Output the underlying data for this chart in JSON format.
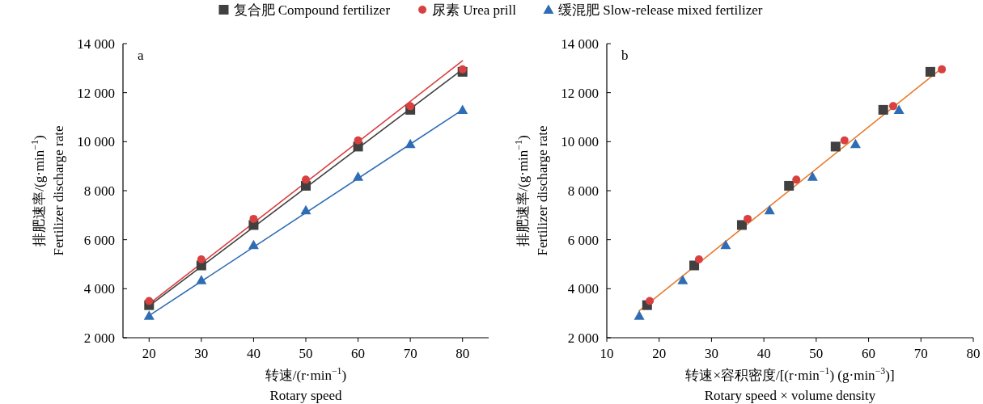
{
  "chart_data": [
    {
      "type": "scatter",
      "xlabel": "转速/(r·min$^{−1}$)\nRotary speed",
      "ylabel": "排肥速率/(g·min$^{−1}$)\nFertilizer discharge rate",
      "annotations": [
        "a"
      ],
      "legend": "top",
      "xlim": [
        15,
        85
      ],
      "xticks": [
        20,
        30,
        40,
        50,
        60,
        70,
        80
      ],
      "ylim": [
        2000,
        14000
      ],
      "yticks": [
        {
          "value": 2000,
          "label": "2 000"
        },
        {
          "value": 4000,
          "label": "4 000"
        },
        {
          "value": 6000,
          "label": "6 000"
        },
        {
          "value": 8000,
          "label": "8 000"
        },
        {
          "value": 10000,
          "label": "10 000"
        },
        {
          "value": 12000,
          "label": "12 000"
        },
        {
          "value": 14000,
          "label": "14 000"
        }
      ],
      "grid": false,
      "series": [
        {
          "name": "复合肥 Compound fertilizer",
          "color": "#404040",
          "marker": "square",
          "x": [
            20,
            30,
            40,
            50,
            60,
            70,
            80
          ],
          "values": [
            3330,
            4950,
            6600,
            8200,
            9800,
            11300,
            12850
          ]
        },
        {
          "name": "尿素 Urea prill",
          "color": "#d94040",
          "marker": "circle",
          "x": [
            20,
            30,
            40,
            50,
            60,
            70,
            80
          ],
          "values": [
            3500,
            5200,
            6850,
            8450,
            10050,
            11450,
            12950
          ]
        },
        {
          "name": "缓混肥 Slow-release mixed fertilizer",
          "color": "#2e6db4",
          "marker": "triangle",
          "x": [
            20,
            30,
            40,
            50,
            60,
            70,
            80
          ],
          "values": [
            2900,
            4350,
            5780,
            7200,
            8570,
            9900,
            11300
          ]
        },
        {
          "type": "line",
          "color": "#404040",
          "marker": "none",
          "line_style": "solid",
          "x": [
            20,
            80
          ],
          "values": [
            3300,
            12950
          ]
        },
        {
          "type": "line",
          "color": "#d94040",
          "marker": "none",
          "line_style": "solid",
          "x": [
            20,
            80
          ],
          "values": [
            3380,
            13300
          ]
        },
        {
          "type": "line",
          "color": "#2e6db4",
          "marker": "none",
          "line_style": "solid",
          "x": [
            20,
            80
          ],
          "values": [
            2900,
            11300
          ]
        }
      ]
    },
    {
      "type": "scatter",
      "xlabel": "转速×容积密度/[(r·min$^{−1}$) (g·min$^{−3}$)]\nRotary speed × volume density",
      "ylabel": "排肥速率/(g·min$^{−1}$)\nFertilizer discharge rate",
      "annotations": [
        "b"
      ],
      "xlim": [
        10,
        80
      ],
      "xticks": [
        10,
        20,
        30,
        40,
        50,
        60,
        70,
        80
      ],
      "ylim": [
        2000,
        14000
      ],
      "yticks": [
        {
          "value": 2000,
          "label": "2 000"
        },
        {
          "value": 4000,
          "label": "4 000"
        },
        {
          "value": 6000,
          "label": "6 000"
        },
        {
          "value": 8000,
          "label": "8 000"
        },
        {
          "value": 10000,
          "label": "10 000"
        },
        {
          "value": 12000,
          "label": "12 000"
        },
        {
          "value": 14000,
          "label": "14 000"
        }
      ],
      "grid": false,
      "series": [
        {
          "color": "#404040",
          "marker": "square",
          "x": [
            17.7,
            26.7,
            35.8,
            44.8,
            53.7,
            62.8,
            71.8
          ],
          "values": [
            3330,
            4950,
            6600,
            8200,
            9800,
            11300,
            12850
          ]
        },
        {
          "color": "#d94040",
          "marker": "circle",
          "x": [
            18.2,
            27.6,
            36.9,
            46.2,
            55.4,
            64.7,
            74.0
          ],
          "values": [
            3500,
            5200,
            6850,
            8450,
            10050,
            11450,
            12950
          ]
        },
        {
          "color": "#2e6db4",
          "marker": "triangle",
          "x": [
            16.2,
            24.5,
            32.7,
            41.1,
            49.3,
            57.5,
            65.8
          ],
          "values": [
            2900,
            4350,
            5780,
            7200,
            8570,
            9900,
            11300
          ]
        },
        {
          "type": "line",
          "color": "#e87b2c",
          "marker": "none",
          "line_style": "solid",
          "x": [
            16.2,
            74
          ],
          "values": [
            3100,
            13000
          ]
        }
      ]
    }
  ]
}
